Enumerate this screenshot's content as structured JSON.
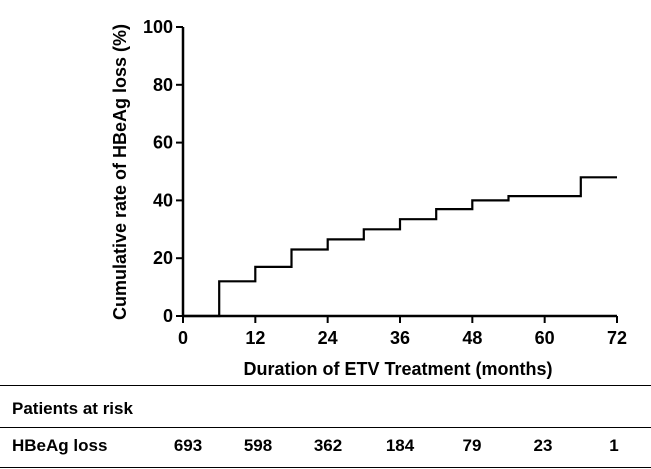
{
  "chart_data": {
    "type": "line",
    "step": true,
    "xlabel": "Duration of  ETV Treatment (months)",
    "ylabel": "Cumulative rate of HBeAg loss (%)",
    "xlim": [
      0,
      72
    ],
    "ylim": [
      0,
      100
    ],
    "xticks": [
      "0",
      "12",
      "24",
      "36",
      "48",
      "60",
      "72"
    ],
    "yticks": [
      "0",
      "20",
      "40",
      "60",
      "80",
      "100"
    ],
    "grid": false,
    "series": [
      {
        "x": [
          0,
          6,
          6,
          12,
          12,
          18,
          18,
          24,
          24,
          30,
          30,
          36,
          36,
          42,
          42,
          48,
          48,
          54,
          54,
          66,
          66,
          72
        ],
        "y": [
          0,
          0,
          12,
          12,
          17,
          17,
          23,
          23,
          26.5,
          26.5,
          30,
          30,
          33.5,
          33.5,
          37,
          37,
          40,
          40,
          41.5,
          41.5,
          48,
          48
        ]
      }
    ]
  },
  "risk_table": {
    "header": "Patients at risk",
    "row_label": "HBeAg loss",
    "counts": [
      "693",
      "598",
      "362",
      "184",
      "79",
      "23",
      "1"
    ]
  }
}
